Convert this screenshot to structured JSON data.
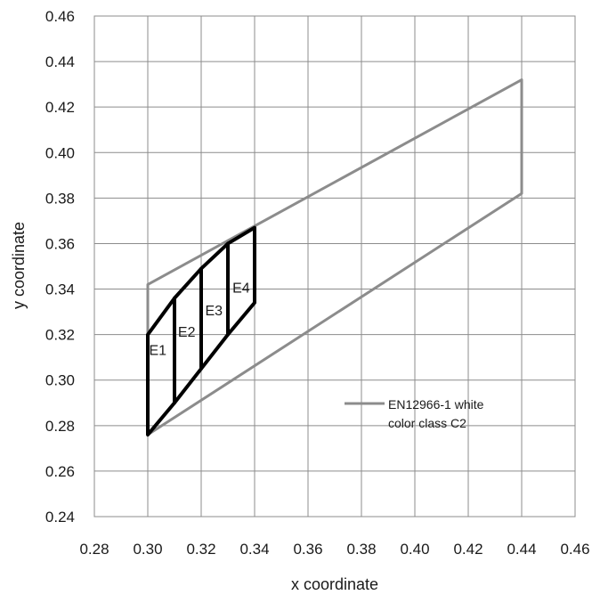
{
  "chart_data": {
    "type": "line",
    "title": "",
    "xlabel": "x coordinate",
    "ylabel": "y coordinate",
    "xlim": [
      0.28,
      0.46
    ],
    "ylim": [
      0.24,
      0.46
    ],
    "xticks": [
      "0.28",
      "0.30",
      "0.32",
      "0.34",
      "0.36",
      "0.38",
      "0.40",
      "0.42",
      "0.44",
      "0.46"
    ],
    "yticks": [
      "0.24",
      "0.26",
      "0.28",
      "0.30",
      "0.32",
      "0.34",
      "0.36",
      "0.38",
      "0.40",
      "0.42",
      "0.44",
      "0.46"
    ],
    "grid": true,
    "legend_position": "right",
    "series": [
      {
        "name": "EN12966-1 white color class C2",
        "legend_lines": [
          "EN12966-1 white",
          "color class C2"
        ],
        "color": "#8c8c8c",
        "points": [
          [
            0.3,
            0.276
          ],
          [
            0.44,
            0.382
          ],
          [
            0.44,
            0.432
          ],
          [
            0.3,
            0.342
          ],
          [
            0.3,
            0.276
          ]
        ]
      }
    ],
    "regions": [
      {
        "label": "E1",
        "color": "#000000",
        "points": [
          [
            0.3,
            0.276
          ],
          [
            0.3,
            0.32
          ],
          [
            0.31,
            0.336
          ],
          [
            0.31,
            0.29
          ],
          [
            0.3,
            0.276
          ]
        ]
      },
      {
        "label": "E2",
        "color": "#000000",
        "points": [
          [
            0.31,
            0.29
          ],
          [
            0.31,
            0.336
          ],
          [
            0.32,
            0.349
          ],
          [
            0.32,
            0.305
          ],
          [
            0.31,
            0.29
          ]
        ]
      },
      {
        "label": "E3",
        "color": "#000000",
        "points": [
          [
            0.32,
            0.305
          ],
          [
            0.32,
            0.349
          ],
          [
            0.33,
            0.36
          ],
          [
            0.33,
            0.32
          ],
          [
            0.32,
            0.305
          ]
        ]
      },
      {
        "label": "E4",
        "color": "#000000",
        "points": [
          [
            0.33,
            0.32
          ],
          [
            0.33,
            0.36
          ],
          [
            0.34,
            0.367
          ],
          [
            0.34,
            0.334
          ],
          [
            0.33,
            0.32
          ]
        ]
      }
    ]
  }
}
